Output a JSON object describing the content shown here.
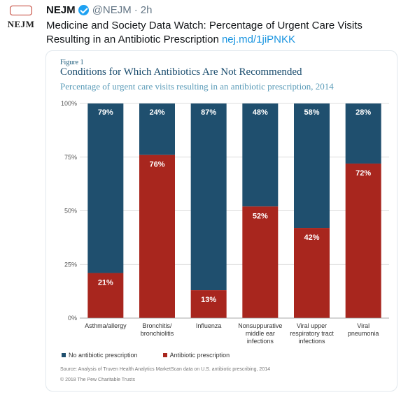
{
  "tweet": {
    "author_name": "NEJM",
    "handle": "@NEJM",
    "separator": "·",
    "time": "2h",
    "avatar_logo": "NEJM",
    "avatar_seal": "NEJM",
    "text": "Medicine and Society Data Watch: Percentage of Urgent Care Visits Resulting in an Antibiotic Prescription ",
    "link": "nej.md/1jiPNKK",
    "verified_icon": "verified-badge-icon"
  },
  "figure": {
    "label": "Figure 1",
    "source": "Source: Analysis of Truven Health Analytics MarketScan data on U.S. antibiotic prescribing, 2014",
    "copyright": "© 2018 The Pew Charitable Trusts"
  },
  "colors": {
    "no_prescription": "#1f4f6e",
    "prescription": "#a8261e",
    "link": "#1b95e0"
  },
  "chart_data": {
    "type": "bar",
    "stacked": true,
    "title": "Conditions for Which Antibiotics Are Not Recommended",
    "subtitle": "Percentage of urgent care visits resulting in an antibiotic prescription, 2014",
    "categories": [
      [
        "Asthma/allergy"
      ],
      [
        "Bronchitis/",
        "bronchiolitis"
      ],
      [
        "Influenza"
      ],
      [
        "Nonsuppurative",
        "middle ear",
        "infections"
      ],
      [
        "Viral upper",
        "respiratory tract",
        "infections"
      ],
      [
        "Viral",
        "pneumonia"
      ]
    ],
    "series": [
      {
        "name": "Antibiotic prescription",
        "values": [
          21,
          76,
          13,
          52,
          42,
          72
        ],
        "labels": [
          "21%",
          "76%",
          "13%",
          "52%",
          "42%",
          "72%"
        ]
      },
      {
        "name": "No antibiotic prescription",
        "values": [
          79,
          24,
          87,
          48,
          58,
          28
        ],
        "labels": [
          "79%",
          "24%",
          "87%",
          "48%",
          "58%",
          "28%"
        ]
      }
    ],
    "y_ticks": [
      0,
      25,
      50,
      75,
      100
    ],
    "y_tick_labels": [
      "0%",
      "25%",
      "50%",
      "75%",
      "100%"
    ],
    "ylim": [
      0,
      100
    ],
    "legend": [
      {
        "label": "No antibiotic prescription"
      },
      {
        "label": "Antibiotic prescription"
      }
    ],
    "legend_position": "bottom",
    "grid": true
  }
}
